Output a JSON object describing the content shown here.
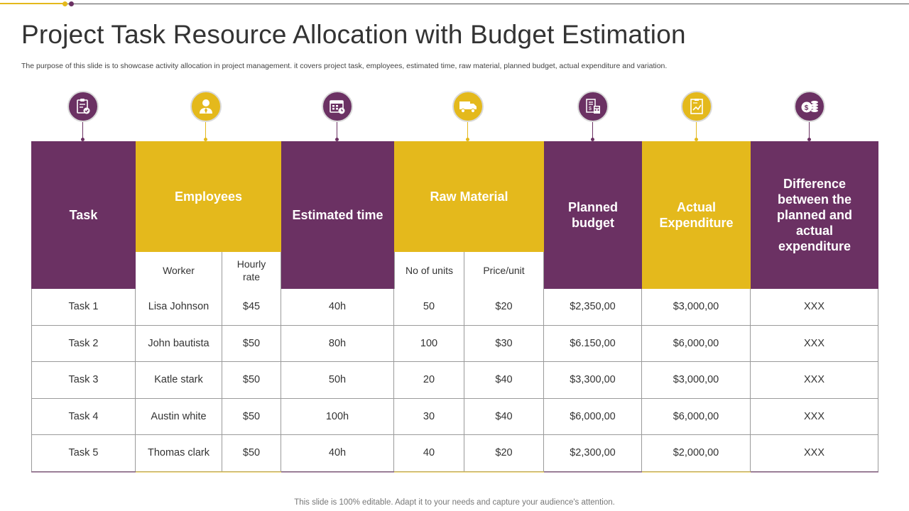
{
  "title": "Project Task Resource Allocation with Budget Estimation",
  "subtitle": "The purpose of this slide is to showcase activity allocation in project management. it covers project task, employees, estimated time, raw material, planned budget, actual expenditure and variation.",
  "footer": "This slide is 100% editable. Adapt it to your needs and capture your audience's attention.",
  "colors": {
    "purple": "#6b3163",
    "gold": "#e4b91c",
    "border": "#9a9a9a"
  },
  "icons": [
    "clipboard-check-icon",
    "employee-icon",
    "calendar-clock-icon",
    "truck-icon",
    "budget-calculator-icon",
    "expenditure-chart-icon",
    "money-stack-icon"
  ],
  "headers": {
    "task": "Task",
    "employees": "Employees",
    "estimated_time": "Estimated time",
    "raw_material": "Raw Material",
    "planned_budget": "Planned budget",
    "actual_expenditure": "Actual Expenditure",
    "difference": "Difference between the planned and actual expenditure"
  },
  "subheaders": {
    "worker": "Worker",
    "hourly_rate": "Hourly rate",
    "units": "No of units",
    "price_unit": "Price/unit"
  },
  "rows": [
    [
      "Task 1",
      "Lisa Johnson",
      "$45",
      "40h",
      "50",
      "$20",
      "$2,350,00",
      "$3,000,00",
      "XXX"
    ],
    [
      "Task 2",
      "John bautista",
      "$50",
      "80h",
      "100",
      "$30",
      "$6.150,00",
      "$6,000,00",
      "XXX"
    ],
    [
      "Task 3",
      "Katle stark",
      "$50",
      "50h",
      "20",
      "$40",
      "$3,300,00",
      "$3,000,00",
      "XXX"
    ],
    [
      "Task 4",
      "Austin white",
      "$50",
      "100h",
      "30",
      "$40",
      "$6,000,00",
      "$6,000,00",
      "XXX"
    ],
    [
      "Task 5",
      "Thomas clark",
      "$50",
      "40h",
      "40",
      "$20",
      "$2,300,00",
      "$2,000,00",
      "XXX"
    ]
  ]
}
